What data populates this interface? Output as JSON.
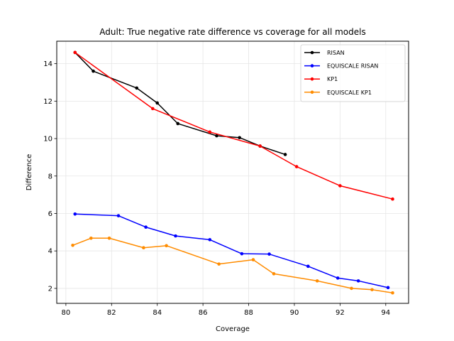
{
  "chart_data": {
    "type": "line",
    "title": "Adult: True negative rate difference vs coverage for all models",
    "xlabel": "Coverage",
    "ylabel": "Difference",
    "xlim": [
      79.6,
      95.0
    ],
    "ylim": [
      1.2,
      15.2
    ],
    "xticks": [
      80,
      82,
      84,
      86,
      88,
      90,
      92,
      94
    ],
    "yticks": [
      2,
      4,
      6,
      8,
      10,
      12,
      14
    ],
    "grid": true,
    "legend_position": "top-right",
    "series": [
      {
        "name": "RISAN",
        "color": "#000000",
        "points": [
          [
            80.4,
            14.6
          ],
          [
            81.2,
            13.6
          ],
          [
            83.1,
            12.7
          ],
          [
            84.0,
            11.9
          ],
          [
            84.9,
            10.8
          ],
          [
            86.6,
            10.15
          ],
          [
            87.6,
            10.05
          ],
          [
            88.5,
            9.6
          ],
          [
            89.6,
            9.15
          ]
        ]
      },
      {
        "name": "EQUISCALE RISAN",
        "color": "#0000ff",
        "points": [
          [
            80.4,
            5.97
          ],
          [
            82.3,
            5.88
          ],
          [
            83.5,
            5.27
          ],
          [
            84.8,
            4.8
          ],
          [
            86.3,
            4.6
          ],
          [
            87.7,
            3.85
          ],
          [
            88.9,
            3.83
          ],
          [
            90.6,
            3.18
          ],
          [
            91.9,
            2.55
          ],
          [
            92.8,
            2.4
          ],
          [
            94.1,
            2.04
          ]
        ]
      },
      {
        "name": "KP1",
        "color": "#ff0000",
        "points": [
          [
            80.4,
            14.6
          ],
          [
            83.8,
            11.6
          ],
          [
            86.3,
            10.35
          ],
          [
            88.5,
            9.6
          ],
          [
            90.1,
            8.5
          ],
          [
            92.0,
            7.48
          ],
          [
            94.3,
            6.77
          ]
        ]
      },
      {
        "name": "EQUISCALE KP1",
        "color": "#ff8c00",
        "points": [
          [
            80.3,
            4.3
          ],
          [
            81.1,
            4.68
          ],
          [
            81.9,
            4.68
          ],
          [
            83.4,
            4.17
          ],
          [
            84.4,
            4.28
          ],
          [
            86.7,
            3.3
          ],
          [
            88.2,
            3.53
          ],
          [
            89.1,
            2.78
          ],
          [
            91.0,
            2.4
          ],
          [
            92.5,
            2.0
          ],
          [
            93.4,
            1.93
          ],
          [
            94.3,
            1.76
          ]
        ]
      }
    ]
  }
}
